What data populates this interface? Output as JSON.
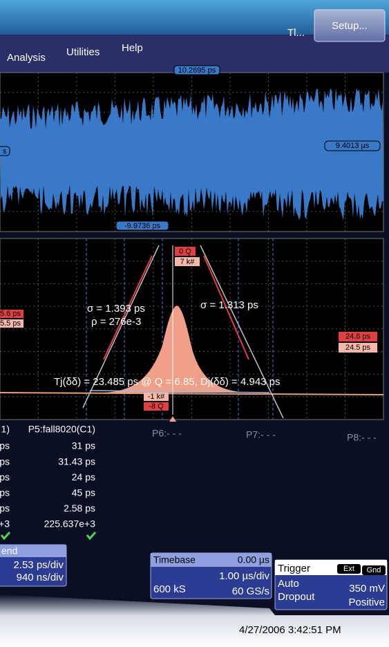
{
  "menu": {
    "items": [
      "Analysis",
      "Utilities",
      "Help"
    ],
    "right": "Tl...",
    "button": "Setup..."
  },
  "top_panel": {
    "labels": [
      "10.2695 ps",
      "9.4013 µs",
      "-9.9736 ps",
      "s"
    ]
  },
  "histogram_panel": {
    "top_markers": [
      "0 Q",
      "7 k#"
    ],
    "sigma_left": "σ = 1.393 ps",
    "rho": "ρ = 276e-3",
    "sigma_right": "σ = 1.313 ps",
    "left_markers": [
      "5.6 ps",
      "5.5 ps"
    ],
    "right_markers": [
      "24.6 ps",
      "24.5 ps"
    ],
    "jitter": "Tj(δδ) = 23.485 ps @ Q = 6.85, Dj(δδ) = 4.943 ps",
    "bottom_markers": [
      "-1 k#",
      "-8 Q"
    ]
  },
  "param_labels": [
    "P6:- - -",
    "P7:- - -",
    "P8:- - -"
  ],
  "table": {
    "columns": [
      {
        "header": "1)",
        "rows": [
          "ps",
          "ps",
          "ps",
          "ps",
          "ps",
          "+3"
        ]
      },
      {
        "header": "P5:fall8020(C1)",
        "rows": [
          "31 ps",
          "31.43 ps",
          "24 ps",
          "45 ps",
          "2.58 ps",
          "225.637e+3"
        ]
      }
    ]
  },
  "zoom_box": {
    "title": "end",
    "lines": [
      "2.53 ps/div",
      "940 ns/div"
    ]
  },
  "timebase": {
    "title": "Timebase",
    "offset": "0.00 µs",
    "per_div": "1.00 µs/div",
    "samples": "600 kS",
    "rate": "60 GS/s"
  },
  "trigger": {
    "title": "Trigger",
    "badges": [
      "Ext",
      "Gnd"
    ],
    "mode": "Auto",
    "level": "350 mV",
    "type": "Dropout",
    "slope": "Positive"
  },
  "timestamp": "4/27/2006 3:42:51 PM"
}
